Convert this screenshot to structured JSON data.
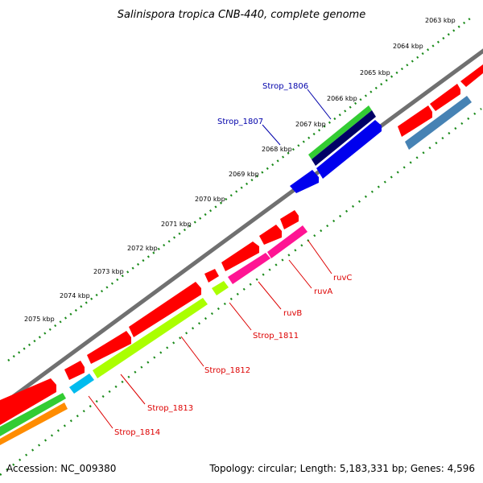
{
  "title": "Salinispora tropica CNB-440, complete genome",
  "ticks": [
    "2063 kbp",
    "2064 kbp",
    "2065 kbp",
    "2066 kbp",
    "2067 kbp",
    "2068 kbp",
    "2069 kbp",
    "2070 kbp",
    "2071 kbp",
    "2072 kbp",
    "2073 kbp",
    "2074 kbp",
    "2075 kbp"
  ],
  "genes_forward": [
    {
      "label": "Strop_1806",
      "color": "#0000aa"
    },
    {
      "label": "Strop_1807",
      "color": "#0000aa"
    }
  ],
  "genes_reverse": [
    {
      "label": "ruvC",
      "color": "#dd0000"
    },
    {
      "label": "ruvA",
      "color": "#dd0000"
    },
    {
      "label": "ruvB",
      "color": "#dd0000"
    },
    {
      "label": "Strop_1811",
      "color": "#dd0000"
    },
    {
      "label": "Strop_1812",
      "color": "#dd0000"
    },
    {
      "label": "Strop_1813",
      "color": "#dd0000"
    },
    {
      "label": "Strop_1814",
      "color": "#dd0000"
    }
  ],
  "footer": {
    "accession": "Accession: NC_009380",
    "summary": "Topology: circular; Length: 5,183,331 bp; Genes: 4,596"
  },
  "colors": {
    "backbone": "#808080",
    "tick_dots": "#1a8a1a",
    "cds": "#ff0000",
    "green": "#33cc33",
    "navy": "#000066",
    "blue": "#0000ee",
    "steelblue": "#4682b4",
    "magenta": "#ff1493",
    "lime": "#aaff00",
    "cyan": "#00bbee",
    "orange": "#ff8c00"
  }
}
